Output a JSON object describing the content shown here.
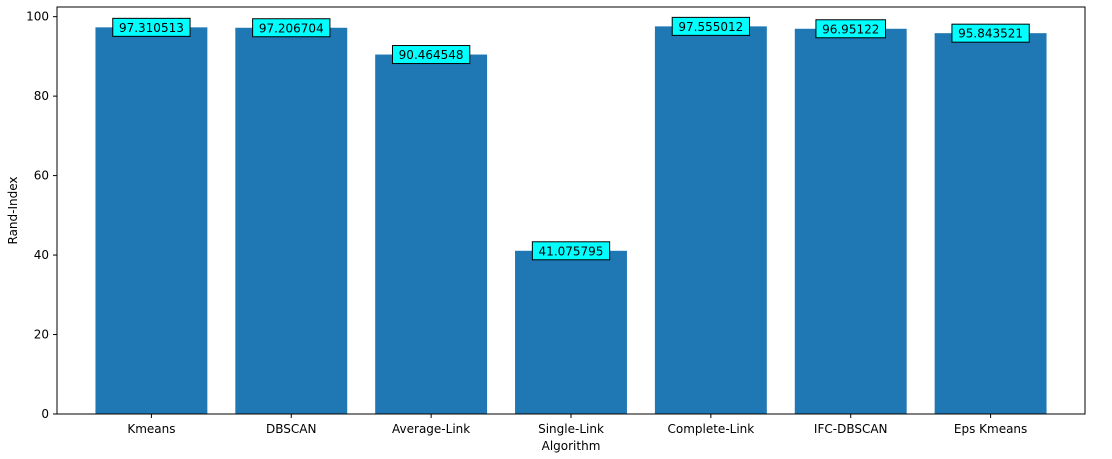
{
  "chart_data": {
    "type": "bar",
    "categories": [
      "Kmeans",
      "DBSCAN",
      "Average-Link",
      "Single-Link",
      "Complete-Link",
      "IFC-DBSCAN",
      "Eps Kmeans"
    ],
    "values": [
      97.310513,
      97.206704,
      90.464548,
      41.075795,
      97.555012,
      96.95122,
      95.843521
    ],
    "value_labels": [
      "97.310513",
      "97.206704",
      "90.464548",
      "41.075795",
      "97.555012",
      "96.95122",
      "95.843521"
    ],
    "xlabel": "Algorithm",
    "ylabel": "Rand-Index",
    "ylim": [
      0,
      102.43
    ],
    "yticks": [
      0,
      20,
      40,
      60,
      80,
      100
    ],
    "grid": false,
    "colors": {
      "bar": "#1f77b4",
      "label_box": "#00ffff",
      "label_border": "#000000",
      "axis": "#000000"
    }
  }
}
